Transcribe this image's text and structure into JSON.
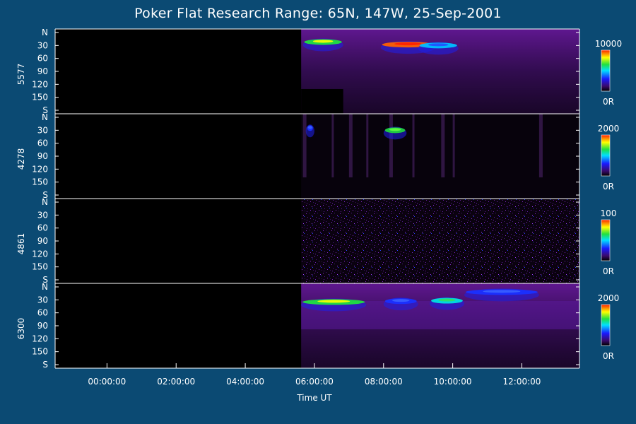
{
  "title": "Poker Flat Research Range: 65N, 147W, 25-Sep-2001",
  "chart_data": {
    "type": "heatmap",
    "title": "Poker Flat Research Range: 65N, 147W, 25-Sep-2001",
    "xlabel": "Time UT",
    "x_range": [
      "22:30:00",
      "13:40:00"
    ],
    "x_ticks": [
      "00:00:00",
      "02:00:00",
      "04:00:00",
      "06:00:00",
      "08:00:00",
      "10:00:00",
      "12:00:00"
    ],
    "y_ticks": [
      "N",
      "30",
      "60",
      "90",
      "120",
      "150",
      "S"
    ],
    "y_range": [
      0,
      180
    ],
    "data_start_time": "05:37:00",
    "panels": [
      {
        "wavelength": "5577",
        "colorbar_max": "10000",
        "colorbar_min": "0R",
        "bright_arcs": [
          {
            "start": "05:40",
            "end": "06:50",
            "angle": 22,
            "level": "green-yellow"
          },
          {
            "start": "07:55",
            "end": "09:30",
            "angle": 28,
            "level": "red-peak"
          },
          {
            "start": "09:00",
            "end": "10:10",
            "angle": 30,
            "level": "cyan-blue"
          }
        ]
      },
      {
        "wavelength": "4278",
        "colorbar_max": "2000",
        "colorbar_min": "0R",
        "bright_arcs": [
          {
            "start": "05:45",
            "end": "06:00",
            "angle": 25,
            "level": "blue"
          },
          {
            "start": "08:00",
            "end": "08:40",
            "angle": 30,
            "level": "green"
          }
        ]
      },
      {
        "wavelength": "4861",
        "colorbar_max": "100",
        "colorbar_min": "0R",
        "bright_arcs": []
      },
      {
        "wavelength": "6300",
        "colorbar_max": "2000",
        "colorbar_min": "0R",
        "bright_arcs": [
          {
            "start": "05:37",
            "end": "07:30",
            "angle": 35,
            "level": "green-yellow"
          },
          {
            "start": "08:00",
            "end": "09:00",
            "angle": 33,
            "level": "blue"
          },
          {
            "start": "09:20",
            "end": "10:20",
            "angle": 32,
            "level": "cyan-green"
          },
          {
            "start": "10:20",
            "end": "12:30",
            "angle": 12,
            "level": "blue"
          }
        ]
      }
    ]
  }
}
